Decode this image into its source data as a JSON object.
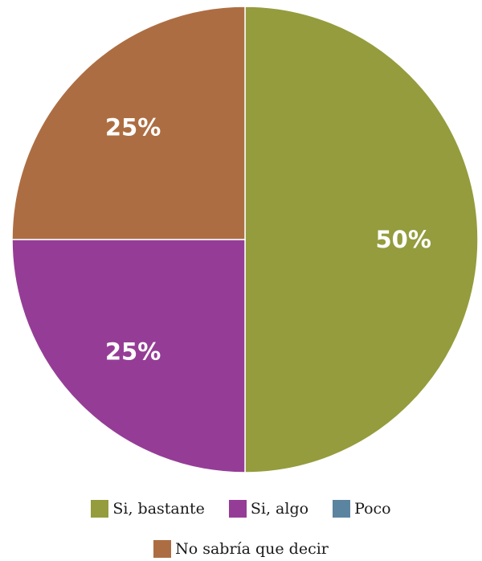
{
  "chart_data": {
    "type": "pie",
    "slices": [
      {
        "label": "Si, bastante",
        "value": 50,
        "display": "50%",
        "color": "#949c3d"
      },
      {
        "label": "Si, algo",
        "value": 25,
        "display": "25%",
        "color": "#953d96"
      },
      {
        "label": "Poco",
        "value": 0,
        "display": "",
        "color": "#5b84a1"
      },
      {
        "label": "No sabría que decir",
        "value": 25,
        "display": "25%",
        "color": "#ad6d42"
      }
    ],
    "start_angle": "12 o'clock",
    "direction": "clockwise",
    "legend_position": "bottom"
  }
}
